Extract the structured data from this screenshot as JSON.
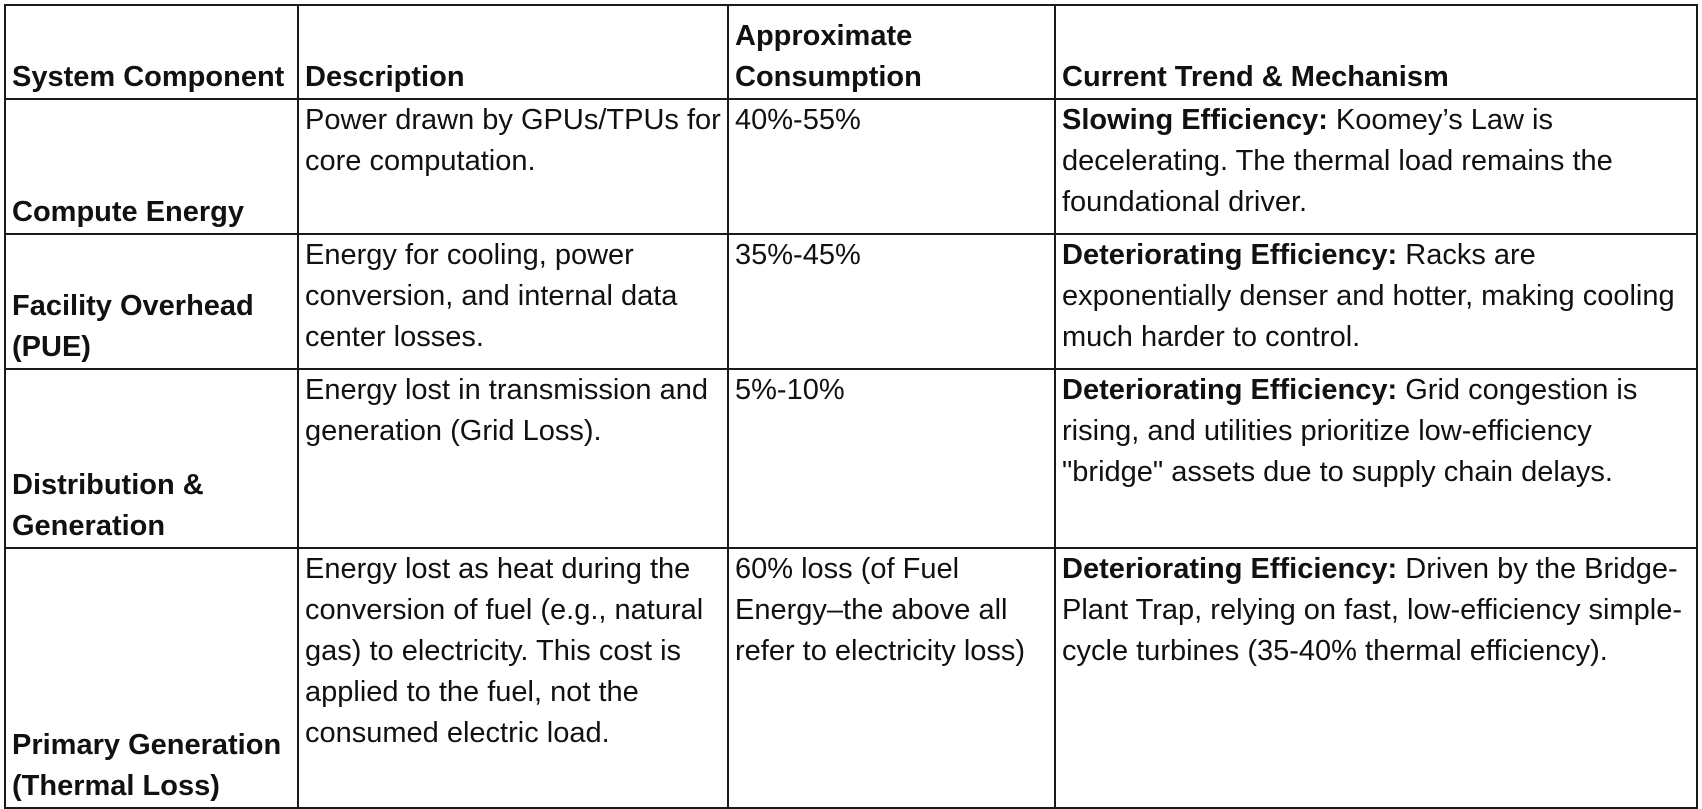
{
  "table": {
    "headers": {
      "component": "System Component",
      "description": "Description",
      "consumption": "Approximate Consumption",
      "trend": "Current Trend & Mechanism"
    },
    "rows": [
      {
        "component": "Compute Energy",
        "description": "Power drawn by GPUs/TPUs for core computation.",
        "consumption": "40%-55%",
        "trend_lead": "Slowing Efficiency:",
        "trend_text": " Koomey’s Law is decelerating. The thermal load remains the foundational driver."
      },
      {
        "component": "Facility Overhead (PUE)",
        "description": "Energy for cooling, power conversion, and internal data center losses.",
        "consumption": "35%-45%",
        "trend_lead": "Deteriorating Efficiency:",
        "trend_text": " Racks are exponentially denser and hotter, making cooling much harder to control."
      },
      {
        "component": "Distribution & Generation",
        "description": "Energy lost in transmission and generation (Grid Loss).",
        "consumption": "5%-10%",
        "trend_lead": "Deteriorating Efficiency:",
        "trend_text": " Grid congestion is rising, and utilities prioritize low-efficiency \"bridge\" assets due to supply chain delays."
      },
      {
        "component": "Primary Generation (Thermal Loss)",
        "description": "Energy lost as heat during the conversion of fuel (e.g., natural gas) to electricity. This cost is applied to the fuel, not the consumed electric load.",
        "consumption": "60% loss (of Fuel Energy–the above all refer to electricity loss)",
        "trend_lead": "Deteriorating Efficiency:",
        "trend_text": " Driven by the Bridge-Plant Trap, relying on fast, low-efficiency simple-cycle turbines (35-40% thermal efficiency)."
      }
    ]
  }
}
